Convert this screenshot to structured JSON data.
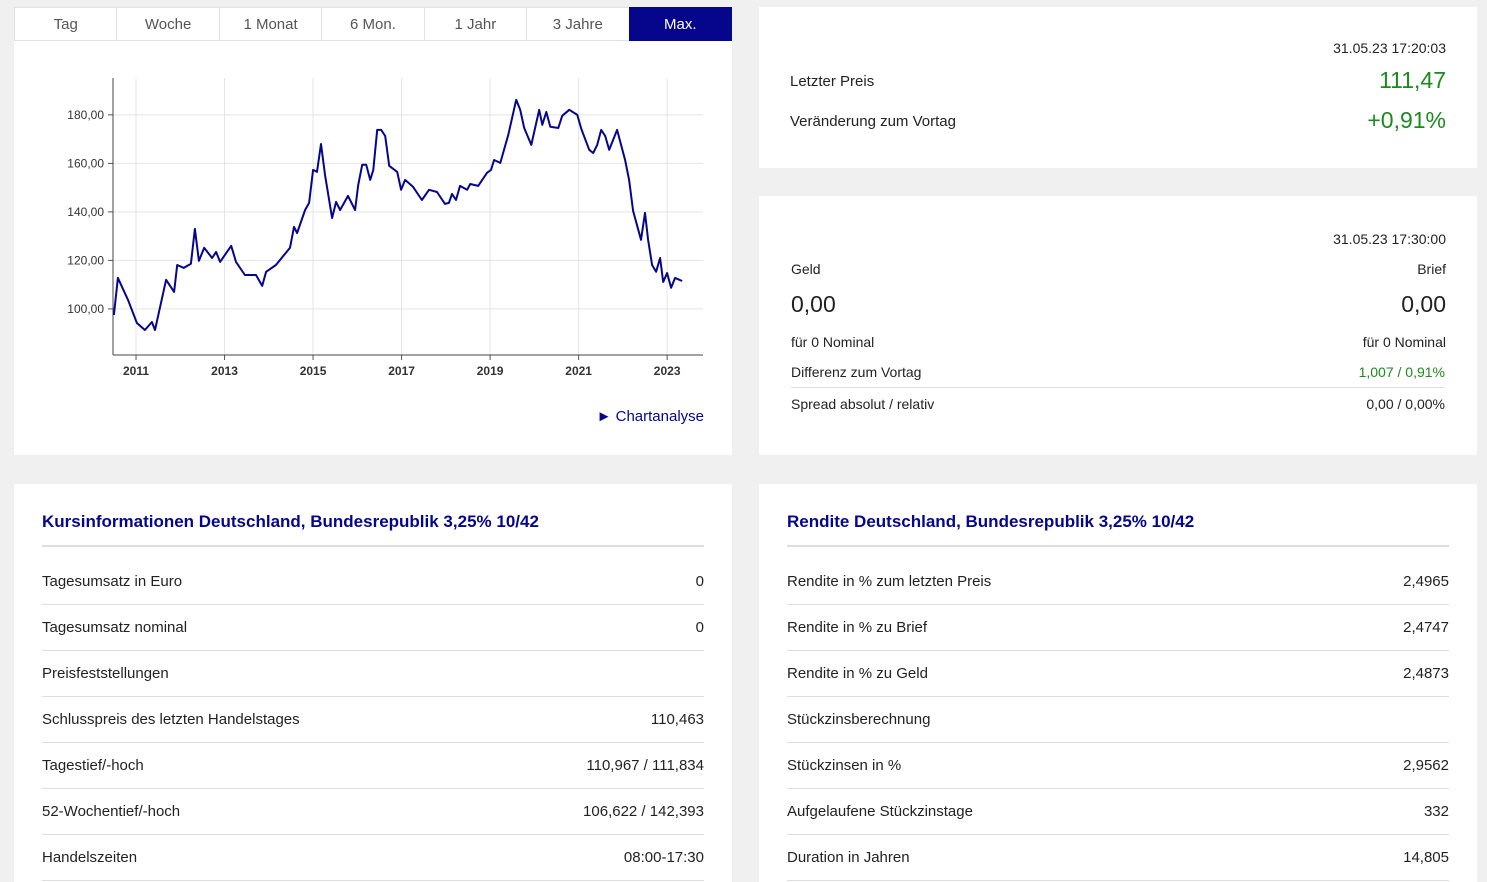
{
  "tabs": {
    "items": [
      "Tag",
      "Woche",
      "1 Monat",
      "6 Mon.",
      "1 Jahr",
      "3 Jahre",
      "Max."
    ],
    "active": 6
  },
  "chart": {
    "type": "line",
    "color": "#05068c",
    "x": [
      2010.5,
      2010.59,
      2010.82,
      2011.02,
      2011.2,
      2011.36,
      2011.43,
      2011.68,
      2011.86,
      2011.93,
      2012.08,
      2012.24,
      2012.33,
      2012.42,
      2012.54,
      2012.72,
      2012.81,
      2012.9,
      2013.15,
      2013.26,
      2013.46,
      2013.71,
      2013.85,
      2013.94,
      2014.16,
      2014.48,
      2014.57,
      2014.64,
      2014.82,
      2014.91,
      2015.0,
      2015.09,
      2015.18,
      2015.27,
      2015.43,
      2015.52,
      2015.61,
      2015.79,
      2015.95,
      2016.02,
      2016.11,
      2016.2,
      2016.29,
      2016.36,
      2016.45,
      2016.54,
      2016.63,
      2016.72,
      2016.9,
      2016.99,
      2017.08,
      2017.26,
      2017.46,
      2017.62,
      2017.8,
      2017.98,
      2018.07,
      2018.14,
      2018.23,
      2018.32,
      2018.48,
      2018.55,
      2018.73,
      2018.93,
      2019.02,
      2019.09,
      2019.23,
      2019.41,
      2019.59,
      2019.68,
      2019.77,
      2019.93,
      2020.11,
      2020.18,
      2020.27,
      2020.36,
      2020.54,
      2020.63,
      2020.79,
      2020.97,
      2021.06,
      2021.24,
      2021.33,
      2021.42,
      2021.51,
      2021.6,
      2021.69,
      2021.87,
      2022.05,
      2022.14,
      2022.23,
      2022.41,
      2022.5,
      2022.57,
      2022.66,
      2022.75,
      2022.84,
      2022.91,
      2023.0,
      2023.09,
      2023.18,
      2023.34
    ],
    "values": [
      97.5,
      112.8,
      103.7,
      94.2,
      91.3,
      94.6,
      91.3,
      112.0,
      107.0,
      118.1,
      116.9,
      118.6,
      133.0,
      119.8,
      125.2,
      121.0,
      123.5,
      119.4,
      126.0,
      119.4,
      114.0,
      114.0,
      109.5,
      115.3,
      118.1,
      125.2,
      133.8,
      131.3,
      140.8,
      143.7,
      157.3,
      156.5,
      168.0,
      155.3,
      137.5,
      144.1,
      140.8,
      146.6,
      140.8,
      151.1,
      159.4,
      159.4,
      153.2,
      157.3,
      173.8,
      173.8,
      171.3,
      159.0,
      156.5,
      149.1,
      153.2,
      150.3,
      144.9,
      149.1,
      148.2,
      143.3,
      143.7,
      147.4,
      144.9,
      150.7,
      149.1,
      151.5,
      150.7,
      156.1,
      157.3,
      161.4,
      160.2,
      171.8,
      186.2,
      182.1,
      174.6,
      167.6,
      182.1,
      175.9,
      181.2,
      175.1,
      174.6,
      179.6,
      182.1,
      180.0,
      174.2,
      165.6,
      164.3,
      167.6,
      173.8,
      171.3,
      165.6,
      173.8,
      161.4,
      153.2,
      140.4,
      128.5,
      139.6,
      128.5,
      118.1,
      115.3,
      121.0,
      111.1,
      114.8,
      108.7,
      112.8,
      111.5
    ],
    "xlim": [
      2010.48,
      2023.81
    ],
    "ylim": [
      81,
      195.2
    ],
    "xticks": [
      2011,
      2013,
      2015,
      2017,
      2019,
      2021,
      2023
    ],
    "yticks": [
      {
        "value": 100,
        "label": "100,00"
      },
      {
        "value": 120,
        "label": "120,00"
      },
      {
        "value": 140,
        "label": "140,00"
      },
      {
        "value": 160,
        "label": "160,00"
      },
      {
        "value": 180,
        "label": "180,00"
      }
    ],
    "grid": true
  },
  "chart_link": "► Chartanalyse",
  "price": {
    "timestamp": "31.05.23 17:20:03",
    "last_label": "Letzter Preis",
    "last_value": "111,47",
    "change_label": "Veränderung zum Vortag",
    "change_value": "+0,91%"
  },
  "quote": {
    "timestamp": "31.05.23 17:30:00",
    "bid_label": "Geld",
    "ask_label": "Brief",
    "bid": "0,00",
    "ask": "0,00",
    "bid_nominal": "für 0 Nominal",
    "ask_nominal": "für 0 Nominal",
    "rows": [
      [
        "Differenz zum Vortag",
        "1,007 / 0,91%"
      ],
      [
        "Spread absolut / relativ",
        "0,00 / 0,00%"
      ]
    ]
  },
  "info_table": {
    "title": "Kursinformationen Deutschland, Bundesrepublik 3,25% 10/42",
    "rows": [
      [
        "Tagesumsatz in Euro",
        "0"
      ],
      [
        "Tagesumsatz nominal",
        "0"
      ],
      [
        "Preisfeststellungen",
        ""
      ],
      [
        "Schlusspreis des letzten Handelstages",
        "110,463"
      ],
      [
        "Tagestief/-hoch",
        "110,967 / 111,834"
      ],
      [
        "52-Wochentief/-hoch",
        "106,622 / 142,393"
      ],
      [
        "Handelszeiten",
        "08:00-17:30"
      ]
    ]
  },
  "yield_table": {
    "title": "Rendite Deutschland, Bundesrepublik 3,25% 10/42",
    "rows": [
      [
        "Rendite in % zum letzten Preis",
        "2,4965"
      ],
      [
        "Rendite in % zu Brief",
        "2,4747"
      ],
      [
        "Rendite in % zu Geld",
        "2,4873"
      ],
      [
        "Stückzinsberechnung",
        ""
      ],
      [
        "Stückzinsen in %",
        "2,9562"
      ],
      [
        "Aufgelaufene Stückzinstage",
        "332"
      ],
      [
        "Duration in Jahren",
        "14,805"
      ]
    ]
  }
}
